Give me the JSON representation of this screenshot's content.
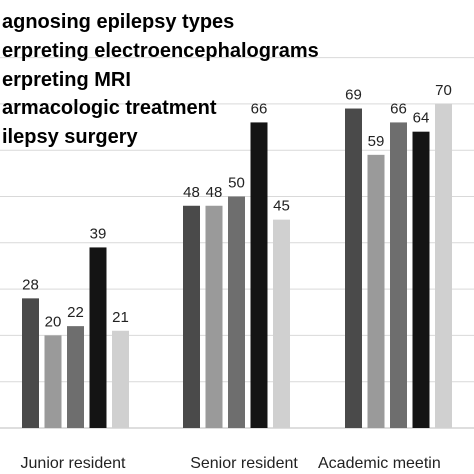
{
  "chart_data": {
    "type": "bar",
    "categories": [
      "Junior resident",
      "Senior resident",
      "Academic meeting"
    ],
    "category_labels_visible": [
      "Junior resident",
      "Senior resident",
      "Academic meetin"
    ],
    "series": [
      {
        "name": "agnosing epilepsy types",
        "color": "#4a4a4a",
        "values": [
          28,
          48,
          69
        ]
      },
      {
        "name": "erpreting electroencephalograms",
        "color": "#9a9a9a",
        "values": [
          20,
          48,
          59
        ]
      },
      {
        "name": "erpreting MRI",
        "color": "#6e6e6e",
        "values": [
          22,
          50,
          66
        ]
      },
      {
        "name": "armacologic treatment",
        "color": "#141414",
        "values": [
          39,
          66,
          64
        ]
      },
      {
        "name": "ilepsy surgery",
        "color": "#d0d0d0",
        "values": [
          21,
          45,
          70
        ]
      }
    ],
    "ylim": [
      0,
      80
    ],
    "grid": true,
    "legend_position": "top-left"
  }
}
